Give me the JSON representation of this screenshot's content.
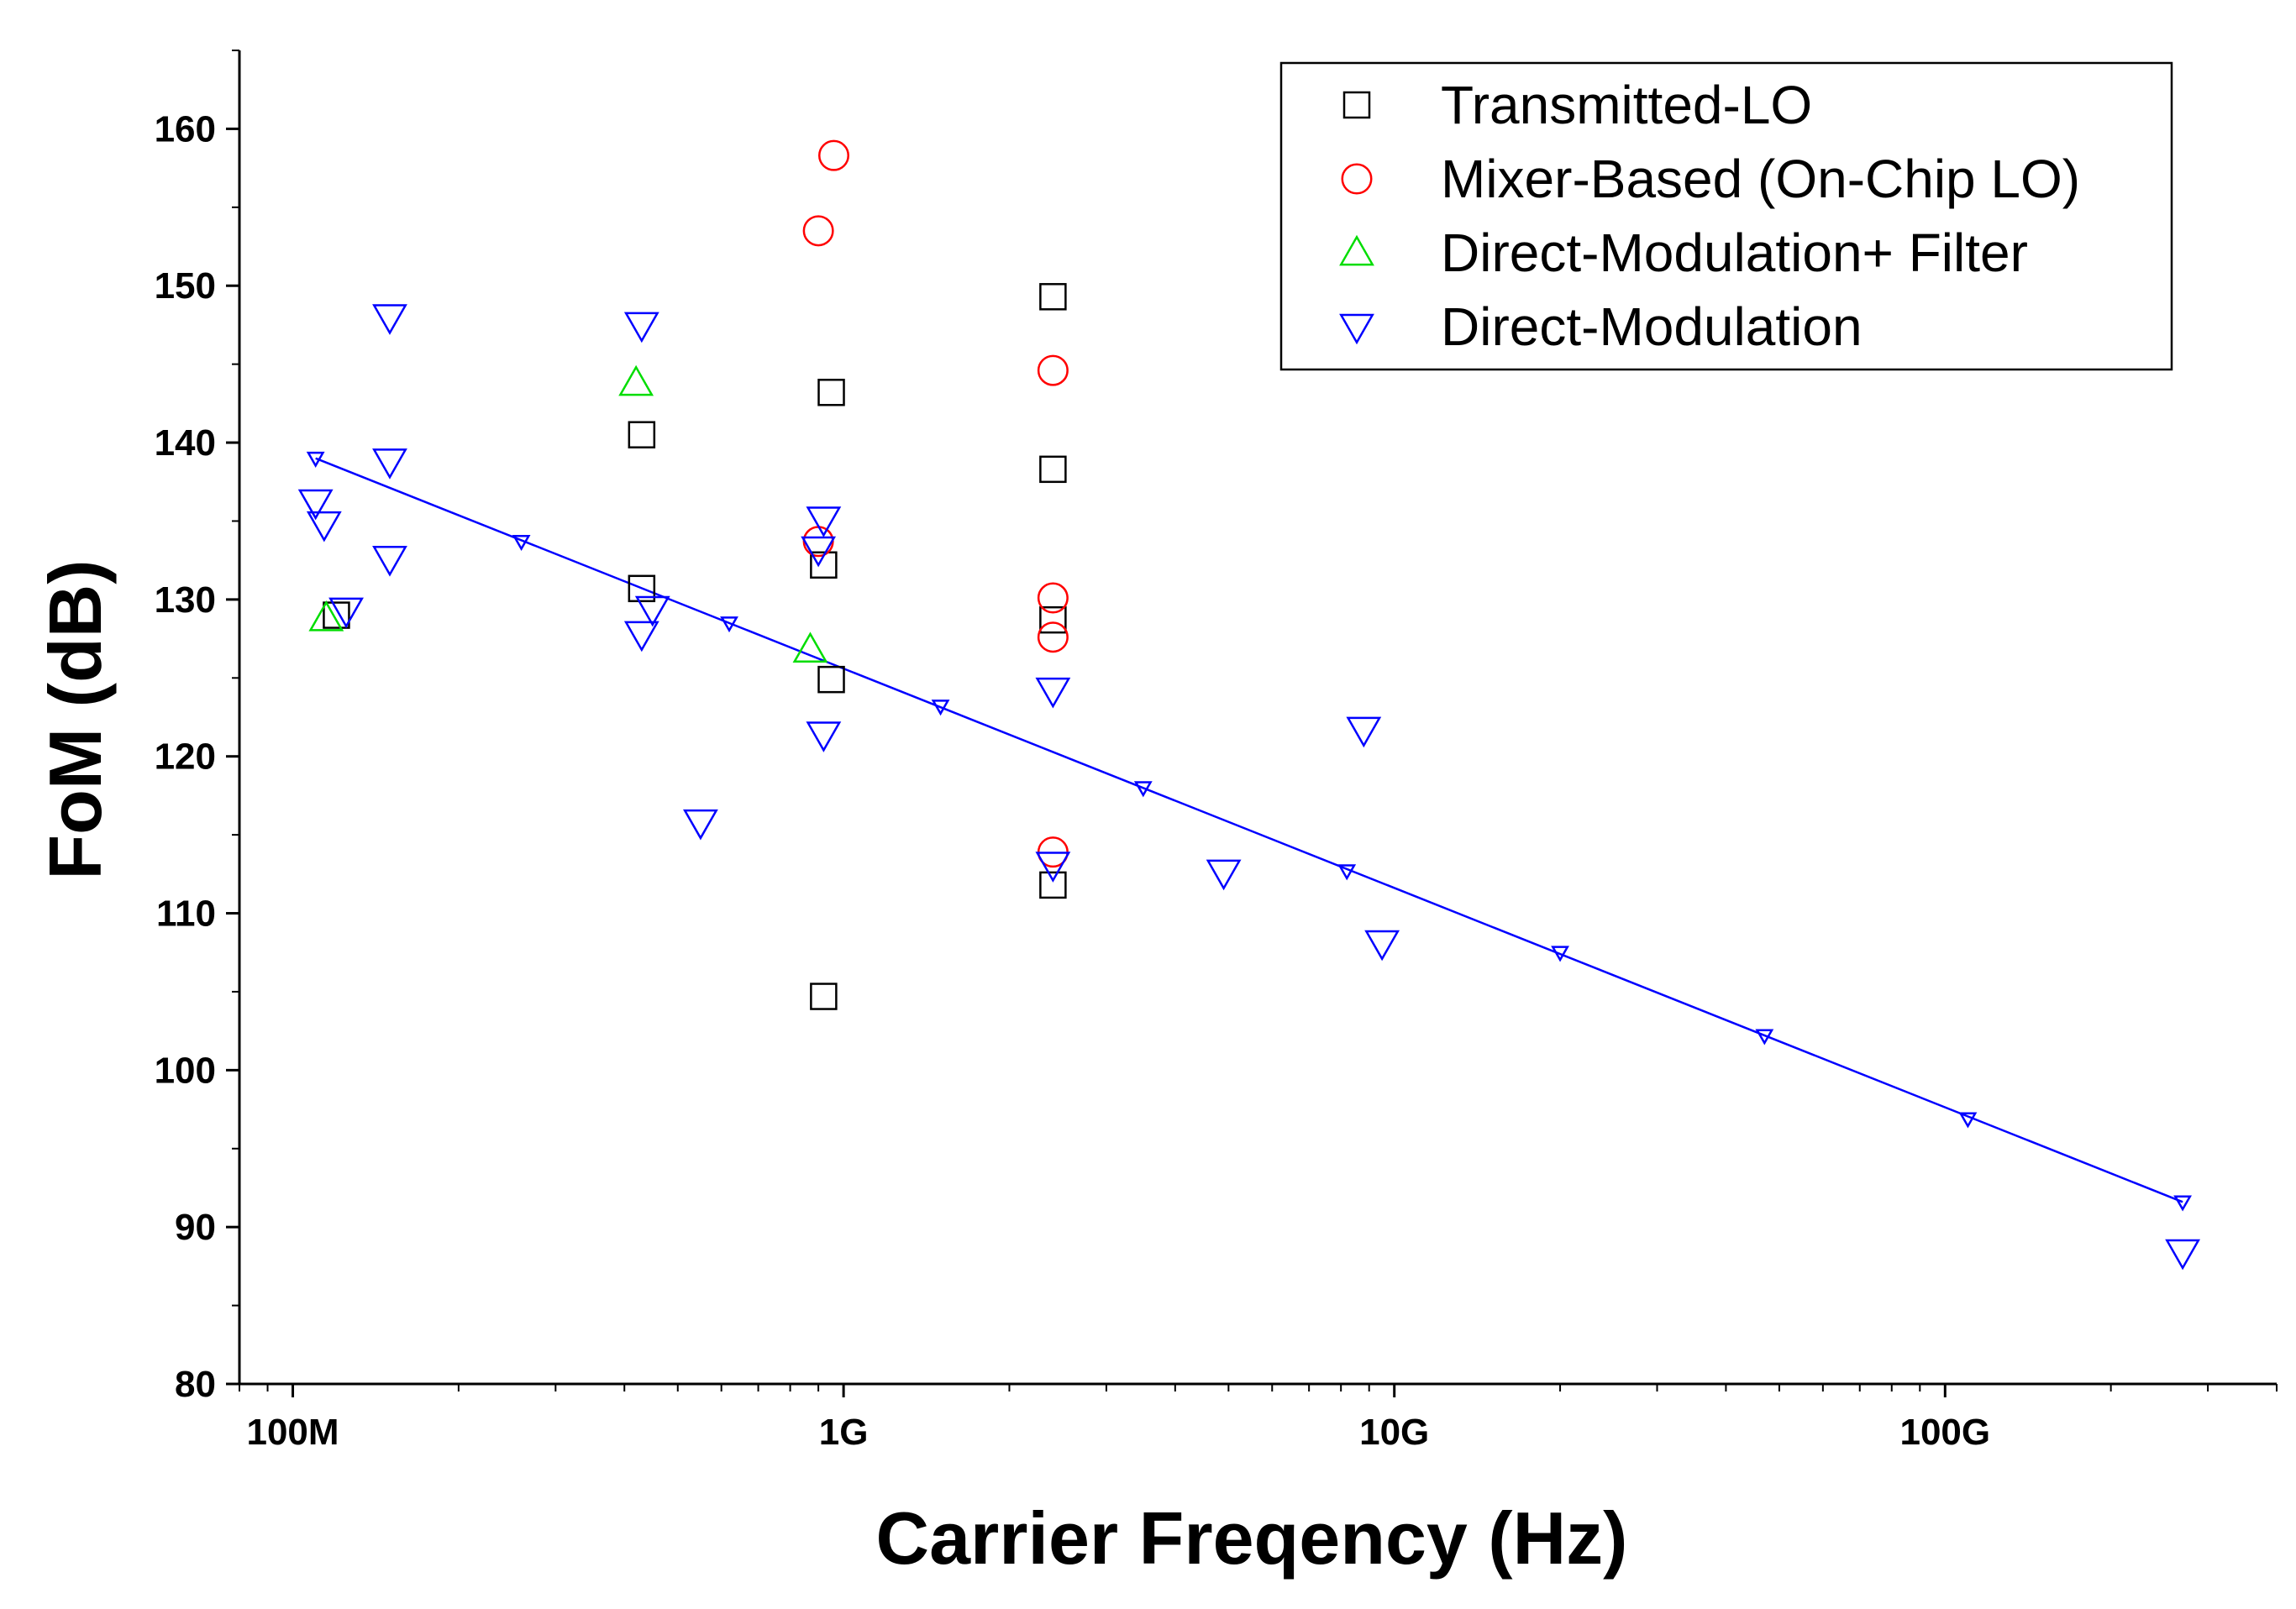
{
  "chart_data": {
    "type": "scatter",
    "title": "",
    "xlabel": "Carrier Freqency (Hz)",
    "ylabel": "FoM (dB)",
    "xscale": "log",
    "xlim": [
      80000000,
      400000000000
    ],
    "ylim": [
      80,
      165
    ],
    "x_tick_values": [
      100000000,
      1000000000,
      10000000000,
      100000000000
    ],
    "x_tick_labels": [
      "100M",
      "1G",
      "10G",
      "100G"
    ],
    "y_tick_values": [
      80,
      90,
      100,
      110,
      120,
      130,
      140,
      150,
      160
    ],
    "y_tick_labels": [
      "80",
      "90",
      "100",
      "110",
      "120",
      "130",
      "140",
      "150",
      "160"
    ],
    "legend_position": "top-right",
    "series": [
      {
        "name": "Transmitted-LO",
        "marker": "square",
        "color": "#000000",
        "points": [
          {
            "x": 120000000,
            "y": 129
          },
          {
            "x": 430000000,
            "y": 140.5
          },
          {
            "x": 430000000,
            "y": 130.7
          },
          {
            "x": 950000000,
            "y": 143.2
          },
          {
            "x": 920000000,
            "y": 132.2
          },
          {
            "x": 950000000,
            "y": 124.9
          },
          {
            "x": 920000000,
            "y": 104.7
          },
          {
            "x": 2400000000,
            "y": 149.3
          },
          {
            "x": 2400000000,
            "y": 138.3
          },
          {
            "x": 2400000000,
            "y": 128.7
          },
          {
            "x": 2400000000,
            "y": 111.8
          }
        ]
      },
      {
        "name": "Mixer-Based (On-Chip LO)",
        "marker": "circle",
        "color": "#ff0000",
        "points": [
          {
            "x": 960000000,
            "y": 158.3
          },
          {
            "x": 900000000,
            "y": 153.5
          },
          {
            "x": 900000000,
            "y": 133.7
          },
          {
            "x": 2400000000,
            "y": 144.6
          },
          {
            "x": 2400000000,
            "y": 130.1
          },
          {
            "x": 2400000000,
            "y": 127.6
          },
          {
            "x": 2400000000,
            "y": 113.9
          }
        ]
      },
      {
        "name": "Direct-Modulation+ Filter",
        "marker": "triangle-up",
        "color": "#00dd00",
        "points": [
          {
            "x": 115000000,
            "y": 128.8
          },
          {
            "x": 420000000,
            "y": 143.8
          },
          {
            "x": 870000000,
            "y": 126.8
          }
        ]
      },
      {
        "name": "Direct-Modulation",
        "marker": "triangle-down",
        "color": "#0000ff",
        "points": [
          {
            "x": 110000000,
            "y": 136.2
          },
          {
            "x": 114000000,
            "y": 134.8
          },
          {
            "x": 125000000,
            "y": 129.3
          },
          {
            "x": 150000000,
            "y": 148
          },
          {
            "x": 150000000,
            "y": 138.8
          },
          {
            "x": 150000000,
            "y": 132.6
          },
          {
            "x": 430000000,
            "y": 147.5
          },
          {
            "x": 450000000,
            "y": 129.4
          },
          {
            "x": 430000000,
            "y": 127.8
          },
          {
            "x": 550000000,
            "y": 115.8
          },
          {
            "x": 920000000,
            "y": 135.1
          },
          {
            "x": 900000000,
            "y": 133.2
          },
          {
            "x": 920000000,
            "y": 121.4
          },
          {
            "x": 2400000000,
            "y": 124.2
          },
          {
            "x": 2400000000,
            "y": 113.1
          },
          {
            "x": 4900000000,
            "y": 112.6
          },
          {
            "x": 8800000000,
            "y": 121.7
          },
          {
            "x": 9500000000,
            "y": 108.1
          },
          {
            "x": 270000000000,
            "y": 88.4
          }
        ]
      }
    ],
    "fit_line": {
      "name": "Linear fit",
      "color": "#0000ff",
      "points": [
        {
          "x": 110000000,
          "y": 139
        },
        {
          "x": 260000000,
          "y": 133.7
        },
        {
          "x": 620000000,
          "y": 128.5
        },
        {
          "x": 1500000000,
          "y": 123.2
        },
        {
          "x": 3500000000,
          "y": 118
        },
        {
          "x": 8200000000,
          "y": 112.7
        },
        {
          "x": 20000000000,
          "y": 107.5
        },
        {
          "x": 47000000000,
          "y": 102.2
        },
        {
          "x": 110000000000,
          "y": 96.9
        },
        {
          "x": 270000000000,
          "y": 91.6
        }
      ]
    }
  }
}
